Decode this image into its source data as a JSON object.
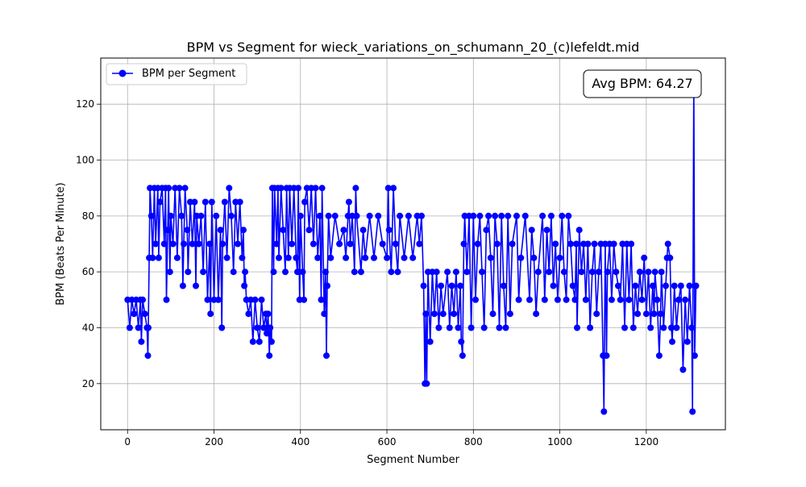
{
  "chart_data": {
    "type": "line",
    "title": "BPM vs Segment for wieck_variations_on_schumann_20_(c)lefeldt.mid",
    "xlabel": "Segment Number",
    "ylabel": "BPM (Beats Per Minute)",
    "xlim": [
      -62,
      1383
    ],
    "ylim": [
      3.5,
      136.5
    ],
    "xticks": [
      0,
      200,
      400,
      600,
      800,
      1000,
      1200
    ],
    "yticks": [
      20,
      40,
      60,
      80,
      100,
      120
    ],
    "grid": true,
    "legend_position": "upper-left",
    "annotation": "Avg BPM: 64.27",
    "series": [
      {
        "name": "BPM per Segment",
        "color": "#0000ff",
        "marker": "circle",
        "note": "",
        "anchors": [
          [
            0,
            50
          ],
          [
            5,
            40
          ],
          [
            10,
            50
          ],
          [
            15,
            45
          ],
          [
            20,
            50
          ],
          [
            25,
            40
          ],
          [
            30,
            50
          ],
          [
            32,
            35
          ],
          [
            35,
            50
          ],
          [
            40,
            45
          ],
          [
            45,
            40
          ],
          [
            47,
            30
          ],
          [
            48,
            40
          ],
          [
            50,
            65
          ],
          [
            52,
            90
          ],
          [
            55,
            80
          ],
          [
            58,
            65
          ],
          [
            62,
            90
          ],
          [
            65,
            70
          ],
          [
            70,
            90
          ],
          [
            72,
            65
          ],
          [
            75,
            85
          ],
          [
            80,
            90
          ],
          [
            85,
            70
          ],
          [
            88,
            90
          ],
          [
            90,
            50
          ],
          [
            93,
            75
          ],
          [
            95,
            90
          ],
          [
            98,
            60
          ],
          [
            100,
            80
          ],
          [
            105,
            70
          ],
          [
            110,
            90
          ],
          [
            115,
            65
          ],
          [
            120,
            90
          ],
          [
            125,
            80
          ],
          [
            128,
            55
          ],
          [
            130,
            70
          ],
          [
            133,
            90
          ],
          [
            138,
            75
          ],
          [
            140,
            60
          ],
          [
            145,
            85
          ],
          [
            150,
            70
          ],
          [
            155,
            85
          ],
          [
            158,
            55
          ],
          [
            160,
            80
          ],
          [
            165,
            70
          ],
          [
            170,
            80
          ],
          [
            175,
            60
          ],
          [
            180,
            85
          ],
          [
            185,
            50
          ],
          [
            190,
            70
          ],
          [
            192,
            45
          ],
          [
            195,
            85
          ],
          [
            200,
            50
          ],
          [
            205,
            80
          ],
          [
            210,
            50
          ],
          [
            215,
            75
          ],
          [
            218,
            40
          ],
          [
            220,
            70
          ],
          [
            225,
            85
          ],
          [
            230,
            65
          ],
          [
            235,
            90
          ],
          [
            240,
            80
          ],
          [
            245,
            60
          ],
          [
            250,
            85
          ],
          [
            255,
            70
          ],
          [
            260,
            85
          ],
          [
            265,
            65
          ],
          [
            268,
            75
          ],
          [
            270,
            55
          ],
          [
            272,
            60
          ],
          [
            275,
            50
          ],
          [
            280,
            45
          ],
          [
            285,
            50
          ],
          [
            290,
            35
          ],
          [
            295,
            50
          ],
          [
            300,
            40
          ],
          [
            305,
            35
          ],
          [
            310,
            50
          ],
          [
            315,
            40
          ],
          [
            320,
            45
          ],
          [
            322,
            38
          ],
          [
            325,
            45
          ],
          [
            328,
            30
          ],
          [
            330,
            40
          ],
          [
            333,
            35
          ],
          [
            335,
            90
          ],
          [
            338,
            60
          ],
          [
            340,
            90
          ],
          [
            345,
            70
          ],
          [
            348,
            90
          ],
          [
            350,
            65
          ],
          [
            355,
            90
          ],
          [
            360,
            75
          ],
          [
            365,
            60
          ],
          [
            368,
            90
          ],
          [
            372,
            65
          ],
          [
            375,
            90
          ],
          [
            380,
            70
          ],
          [
            385,
            90
          ],
          [
            390,
            65
          ],
          [
            393,
            60
          ],
          [
            395,
            90
          ],
          [
            398,
            50
          ],
          [
            400,
            80
          ],
          [
            405,
            60
          ],
          [
            408,
            50
          ],
          [
            410,
            85
          ],
          [
            415,
            90
          ],
          [
            420,
            75
          ],
          [
            425,
            90
          ],
          [
            430,
            70
          ],
          [
            435,
            90
          ],
          [
            440,
            65
          ],
          [
            445,
            80
          ],
          [
            448,
            50
          ],
          [
            450,
            90
          ],
          [
            455,
            45
          ],
          [
            458,
            60
          ],
          [
            460,
            30
          ],
          [
            462,
            55
          ],
          [
            465,
            80
          ],
          [
            470,
            65
          ],
          [
            480,
            80
          ],
          [
            490,
            70
          ],
          [
            500,
            75
          ],
          [
            505,
            65
          ],
          [
            510,
            80
          ],
          [
            512,
            85
          ],
          [
            515,
            70
          ],
          [
            520,
            80
          ],
          [
            525,
            60
          ],
          [
            528,
            90
          ],
          [
            530,
            80
          ],
          [
            540,
            60
          ],
          [
            545,
            75
          ],
          [
            550,
            65
          ],
          [
            560,
            80
          ],
          [
            570,
            65
          ],
          [
            580,
            80
          ],
          [
            590,
            70
          ],
          [
            600,
            65
          ],
          [
            603,
            90
          ],
          [
            605,
            75
          ],
          [
            610,
            60
          ],
          [
            615,
            90
          ],
          [
            620,
            70
          ],
          [
            625,
            60
          ],
          [
            630,
            80
          ],
          [
            640,
            65
          ],
          [
            650,
            80
          ],
          [
            660,
            65
          ],
          [
            670,
            80
          ],
          [
            675,
            70
          ],
          [
            680,
            80
          ],
          [
            685,
            55
          ],
          [
            688,
            20
          ],
          [
            690,
            45
          ],
          [
            692,
            20
          ],
          [
            695,
            60
          ],
          [
            700,
            35
          ],
          [
            705,
            60
          ],
          [
            710,
            45
          ],
          [
            715,
            60
          ],
          [
            720,
            40
          ],
          [
            725,
            55
          ],
          [
            730,
            45
          ],
          [
            740,
            60
          ],
          [
            745,
            40
          ],
          [
            750,
            55
          ],
          [
            755,
            45
          ],
          [
            760,
            60
          ],
          [
            765,
            40
          ],
          [
            770,
            55
          ],
          [
            772,
            35
          ],
          [
            775,
            30
          ],
          [
            778,
            70
          ],
          [
            780,
            80
          ],
          [
            785,
            60
          ],
          [
            790,
            80
          ],
          [
            795,
            40
          ],
          [
            800,
            80
          ],
          [
            805,
            50
          ],
          [
            810,
            70
          ],
          [
            815,
            80
          ],
          [
            820,
            60
          ],
          [
            825,
            40
          ],
          [
            830,
            75
          ],
          [
            835,
            80
          ],
          [
            840,
            65
          ],
          [
            845,
            45
          ],
          [
            850,
            80
          ],
          [
            855,
            70
          ],
          [
            860,
            40
          ],
          [
            865,
            80
          ],
          [
            870,
            55
          ],
          [
            875,
            40
          ],
          [
            880,
            80
          ],
          [
            885,
            45
          ],
          [
            890,
            70
          ],
          [
            900,
            80
          ],
          [
            905,
            50
          ],
          [
            910,
            65
          ],
          [
            920,
            80
          ],
          [
            930,
            50
          ],
          [
            935,
            75
          ],
          [
            940,
            65
          ],
          [
            945,
            45
          ],
          [
            950,
            60
          ],
          [
            960,
            80
          ],
          [
            965,
            50
          ],
          [
            970,
            75
          ],
          [
            975,
            60
          ],
          [
            980,
            80
          ],
          [
            985,
            55
          ],
          [
            990,
            70
          ],
          [
            995,
            50
          ],
          [
            1000,
            65
          ],
          [
            1005,
            80
          ],
          [
            1010,
            60
          ],
          [
            1015,
            50
          ],
          [
            1020,
            80
          ],
          [
            1025,
            70
          ],
          [
            1030,
            55
          ],
          [
            1035,
            50
          ],
          [
            1038,
            70
          ],
          [
            1040,
            40
          ],
          [
            1045,
            75
          ],
          [
            1050,
            60
          ],
          [
            1055,
            70
          ],
          [
            1060,
            50
          ],
          [
            1065,
            70
          ],
          [
            1070,
            40
          ],
          [
            1075,
            60
          ],
          [
            1080,
            70
          ],
          [
            1085,
            45
          ],
          [
            1090,
            60
          ],
          [
            1095,
            70
          ],
          [
            1100,
            30
          ],
          [
            1102,
            10
          ],
          [
            1105,
            70
          ],
          [
            1108,
            30
          ],
          [
            1110,
            60
          ],
          [
            1115,
            70
          ],
          [
            1120,
            50
          ],
          [
            1125,
            70
          ],
          [
            1130,
            60
          ],
          [
            1135,
            55
          ],
          [
            1140,
            50
          ],
          [
            1145,
            70
          ],
          [
            1150,
            40
          ],
          [
            1155,
            70
          ],
          [
            1160,
            50
          ],
          [
            1165,
            70
          ],
          [
            1170,
            40
          ],
          [
            1175,
            55
          ],
          [
            1180,
            45
          ],
          [
            1185,
            60
          ],
          [
            1190,
            50
          ],
          [
            1195,
            65
          ],
          [
            1200,
            45
          ],
          [
            1205,
            60
          ],
          [
            1210,
            40
          ],
          [
            1215,
            55
          ],
          [
            1218,
            45
          ],
          [
            1220,
            60
          ],
          [
            1225,
            50
          ],
          [
            1230,
            30
          ],
          [
            1233,
            45
          ],
          [
            1235,
            60
          ],
          [
            1240,
            40
          ],
          [
            1245,
            55
          ],
          [
            1248,
            65
          ],
          [
            1250,
            70
          ],
          [
            1255,
            65
          ],
          [
            1258,
            40
          ],
          [
            1260,
            35
          ],
          [
            1265,
            55
          ],
          [
            1270,
            40
          ],
          [
            1275,
            50
          ],
          [
            1280,
            55
          ],
          [
            1285,
            25
          ],
          [
            1290,
            50
          ],
          [
            1295,
            35
          ],
          [
            1300,
            55
          ],
          [
            1305,
            40
          ],
          [
            1307,
            10
          ],
          [
            1310,
            130
          ],
          [
            1312,
            30
          ],
          [
            1315,
            55
          ]
        ]
      }
    ]
  }
}
